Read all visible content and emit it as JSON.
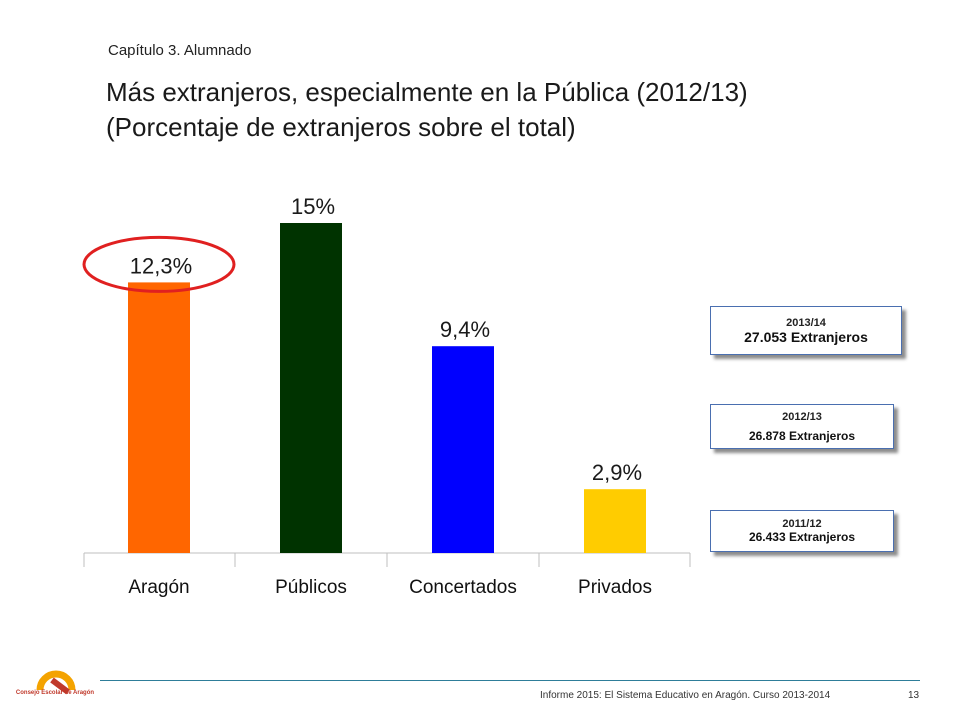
{
  "header": {
    "chapter": "Capítulo 3. Alumnado",
    "title_line1": "Más extranjeros, especialmente en la  Pública (2012/13)",
    "title_line2": "(Porcentaje de extranjeros sobre el total)"
  },
  "chart_data": {
    "type": "bar",
    "title": "",
    "categories": [
      "Aragón",
      "Públicos",
      "Concertados",
      "Privados"
    ],
    "values": [
      12.3,
      15,
      9.4,
      2.9
    ],
    "value_labels": [
      "12,3%",
      "15%",
      "9,4%",
      "2,9%"
    ],
    "colors": [
      "#ff6600",
      "#003300",
      "#0000ff",
      "#ffcc00"
    ],
    "highlight_category": "Aragón",
    "highlight_color": "#e02020",
    "ylim": [
      0,
      15
    ],
    "grid": false,
    "xlabel": "",
    "ylabel": ""
  },
  "info_boxes": [
    {
      "year": "2013/14",
      "value": "27.053 Extranjeros"
    },
    {
      "year": "2012/13",
      "value": "26.878 Extranjeros"
    },
    {
      "year": "2011/12",
      "value": "26.433 Extranjeros"
    }
  ],
  "footer": {
    "text": "Informe 2015: El Sistema Educativo en Aragón. Curso 2013-2014",
    "page": "13",
    "logo_label": "Consejo Escolar de Aragón"
  }
}
